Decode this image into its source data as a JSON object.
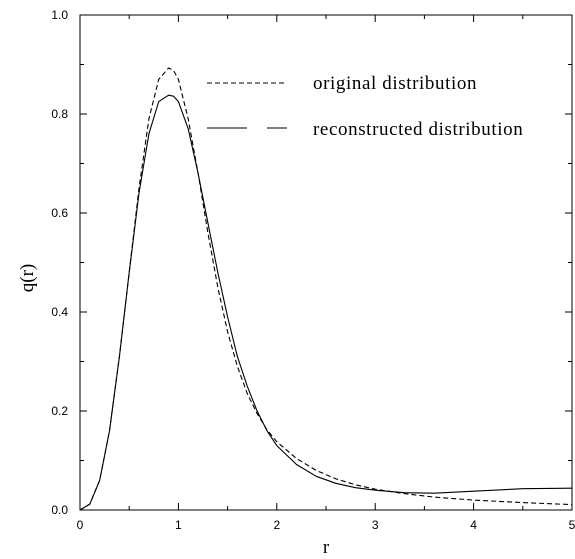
{
  "chart_data": {
    "type": "line",
    "title": "",
    "xlabel": "r",
    "ylabel": "q(r)",
    "xlim": [
      0,
      5
    ],
    "ylim": [
      0,
      1.0
    ],
    "xticks": [
      0,
      1,
      2,
      3,
      4,
      5
    ],
    "xtick_labels": [
      "0",
      "1",
      "2",
      "3",
      "4",
      "5"
    ],
    "yticks": [
      0,
      0.2,
      0.4,
      0.6,
      0.8,
      1.0
    ],
    "ytick_labels": [
      "0.0",
      "0.2",
      "0.4",
      "0.6",
      "0.8",
      "1.0"
    ],
    "grid": false,
    "legend_position": "top-right",
    "series": [
      {
        "name": "original distribution",
        "style": "dashed",
        "color": "#000000",
        "x": [
          0,
          0.1,
          0.2,
          0.3,
          0.4,
          0.5,
          0.6,
          0.7,
          0.8,
          0.9,
          0.95,
          1.0,
          1.1,
          1.2,
          1.3,
          1.4,
          1.5,
          1.6,
          1.7,
          1.8,
          1.9,
          2.0,
          2.2,
          2.4,
          2.6,
          2.8,
          3.0,
          3.3,
          3.6,
          4.0,
          4.5,
          5.0
        ],
        "y": [
          0,
          0.012,
          0.06,
          0.16,
          0.31,
          0.48,
          0.65,
          0.79,
          0.87,
          0.893,
          0.888,
          0.87,
          0.79,
          0.68,
          0.56,
          0.45,
          0.36,
          0.29,
          0.235,
          0.195,
          0.162,
          0.138,
          0.104,
          0.08,
          0.063,
          0.051,
          0.042,
          0.033,
          0.026,
          0.02,
          0.015,
          0.011
        ]
      },
      {
        "name": "reconstructed distribution",
        "style": "solid",
        "color": "#000000",
        "x": [
          0,
          0.1,
          0.2,
          0.3,
          0.4,
          0.5,
          0.6,
          0.7,
          0.8,
          0.9,
          0.95,
          1.0,
          1.1,
          1.2,
          1.3,
          1.4,
          1.5,
          1.6,
          1.7,
          1.8,
          1.9,
          2.0,
          2.2,
          2.4,
          2.6,
          2.8,
          3.0,
          3.3,
          3.6,
          4.0,
          4.5,
          5.0
        ],
        "y": [
          0,
          0.012,
          0.06,
          0.16,
          0.31,
          0.48,
          0.64,
          0.76,
          0.825,
          0.838,
          0.836,
          0.825,
          0.77,
          0.68,
          0.58,
          0.48,
          0.39,
          0.31,
          0.25,
          0.2,
          0.16,
          0.13,
          0.092,
          0.068,
          0.054,
          0.045,
          0.04,
          0.035,
          0.034,
          0.038,
          0.043,
          0.044
        ]
      }
    ]
  }
}
